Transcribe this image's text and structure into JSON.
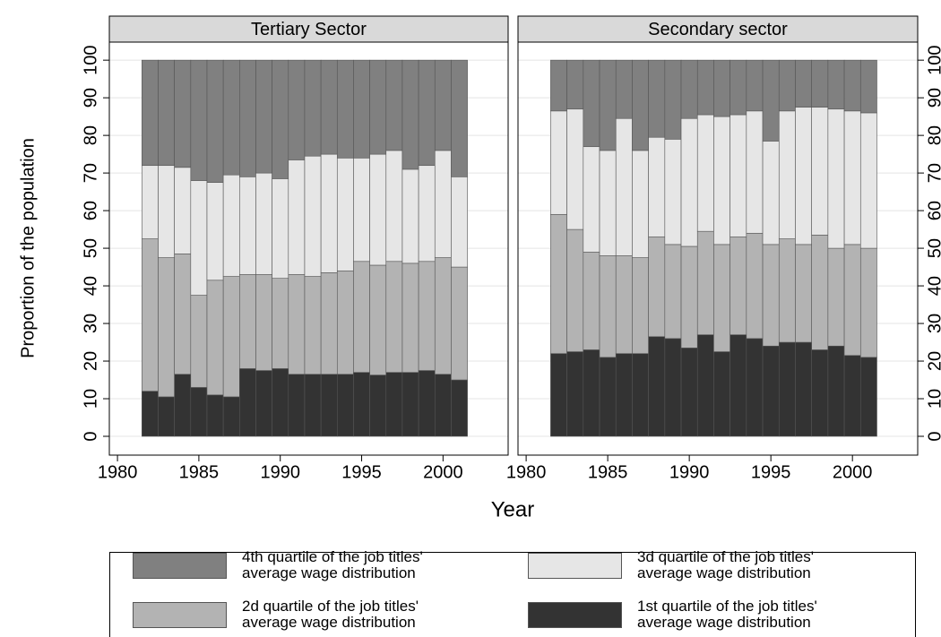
{
  "chart_data": [
    {
      "type": "bar",
      "stacked": true,
      "title": "Tertiary Sector",
      "y_label": "Proportion of the population",
      "x_label": "Year",
      "x": [
        1982,
        1983,
        1984,
        1985,
        1986,
        1987,
        1988,
        1989,
        1990,
        1991,
        1992,
        1993,
        1994,
        1995,
        1996,
        1997,
        1998,
        1999,
        2000,
        2001
      ],
      "series": [
        {
          "name": "4th quartile of the job titles' average wage distribution",
          "color": "#808080",
          "values": [
            28,
            28,
            28.5,
            32,
            32.5,
            30.5,
            31,
            30,
            31.5,
            26.5,
            25.5,
            25,
            26,
            26,
            25,
            24,
            29,
            28,
            24,
            31
          ]
        },
        {
          "name": "3d quartile of the job titles' average wage distribution",
          "color": "#e6e6e6",
          "values": [
            19.5,
            24.5,
            23,
            30.5,
            26,
            27,
            26,
            27,
            26.5,
            30.5,
            32,
            31.5,
            30,
            27.5,
            29.5,
            29.5,
            25,
            25.5,
            28.5,
            24
          ]
        },
        {
          "name": "2d quartile of the job titles' average wage distribution",
          "color": "#b3b3b3",
          "values": [
            40.5,
            37,
            32,
            24.5,
            30.5,
            32,
            25,
            25.5,
            24,
            26.5,
            26,
            27,
            27.5,
            29.5,
            29.2,
            29.5,
            29,
            29,
            31,
            30
          ]
        },
        {
          "name": "1st quartile of the job titles' average wage distribution",
          "color": "#333333",
          "values": [
            12,
            10.5,
            16.5,
            13,
            11,
            10.5,
            18,
            17.5,
            18,
            16.5,
            16.5,
            16.5,
            16.5,
            17,
            16.3,
            17,
            17,
            17.5,
            16.5,
            15
          ]
        }
      ],
      "xlim": [
        1979.5,
        2004
      ],
      "xticks": [
        1980,
        1985,
        1990,
        1995,
        2000
      ],
      "ylim": [
        -5,
        104.8
      ],
      "yticks": [
        0,
        10,
        20,
        30,
        40,
        50,
        60,
        70,
        80,
        90,
        100
      ],
      "grid": true,
      "yaxis_side": "left"
    },
    {
      "type": "bar",
      "stacked": true,
      "title": "Secondary sector",
      "x": [
        1982,
        1983,
        1984,
        1985,
        1986,
        1987,
        1988,
        1989,
        1990,
        1991,
        1992,
        1993,
        1994,
        1995,
        1996,
        1997,
        1998,
        1999,
        2000,
        2001
      ],
      "series": [
        {
          "color": "#808080",
          "values": [
            13.5,
            13,
            23,
            24,
            15.5,
            24,
            20.5,
            21,
            15.5,
            14.5,
            15,
            14.5,
            13.5,
            21.5,
            13.5,
            12.5,
            12.5,
            13,
            13.5,
            14
          ]
        },
        {
          "color": "#e6e6e6",
          "values": [
            27.5,
            32,
            28,
            28,
            36.5,
            28.5,
            26.5,
            28,
            34,
            31,
            34,
            32.5,
            32.5,
            27.5,
            34,
            36.5,
            34,
            37,
            35.5,
            36
          ]
        },
        {
          "color": "#b3b3b3",
          "values": [
            37,
            32.5,
            26,
            27,
            26,
            25.5,
            26.5,
            25,
            27,
            27.5,
            28.5,
            26,
            28,
            27,
            27.5,
            26,
            30.5,
            26,
            29.5,
            29
          ]
        },
        {
          "color": "#333333",
          "values": [
            22,
            22.5,
            23,
            21,
            22,
            22,
            26.5,
            26,
            23.5,
            27,
            22.5,
            27,
            26,
            24,
            25,
            25,
            23,
            24,
            21.5,
            21
          ]
        }
      ],
      "xlim": [
        1979.5,
        2004
      ],
      "xticks": [
        1980,
        1985,
        1990,
        1995,
        2000
      ],
      "ylim": [
        -5,
        104.8
      ],
      "yticks": [
        0,
        10,
        20,
        30,
        40,
        50,
        60,
        70,
        80,
        90,
        100
      ],
      "grid": true,
      "yaxis_side": "right"
    }
  ]
}
